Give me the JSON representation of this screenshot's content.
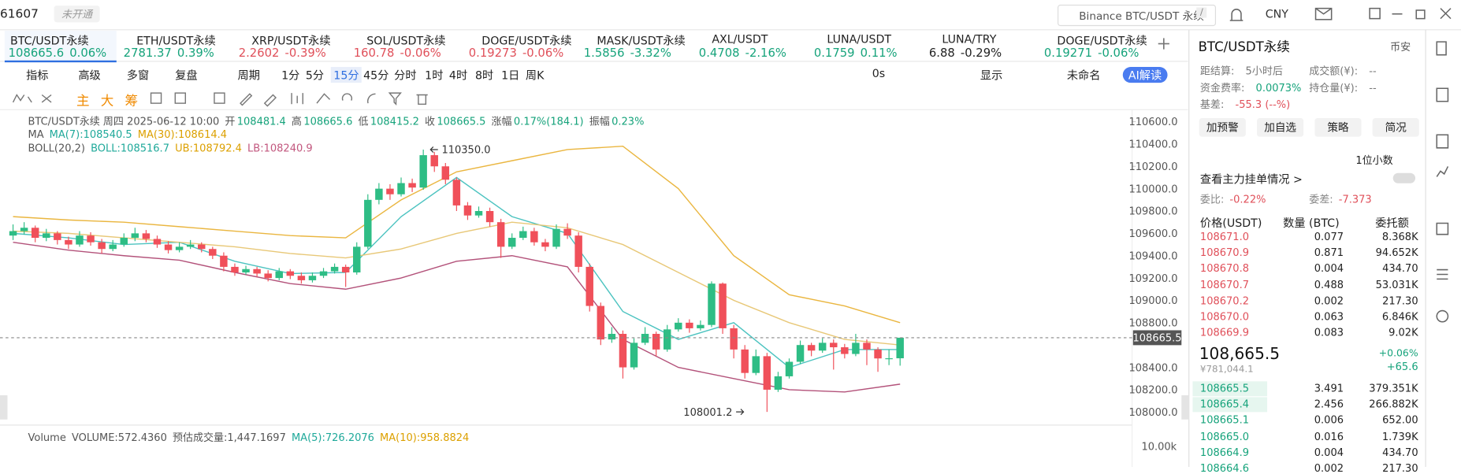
{
  "top_bar": {
    "code": "61607",
    "status": "未开通",
    "search": "Binance BTC/USDT 永续",
    "search_key": "/",
    "currency": "CNY"
  },
  "tickers": [
    {
      "name": "BTC/USDT永续",
      "price": "108665.6",
      "change": "0.06%",
      "color": "#16a37b"
    },
    {
      "name": "ETH/USDT永续",
      "price": "2781.37",
      "change": "0.39%",
      "color": "#16a37b"
    },
    {
      "name": "XRP/USDT永续",
      "price": "2.2602",
      "change": "-0.39%",
      "color": "#e0505a"
    },
    {
      "name": "SOL/USDT永续",
      "price": "160.78",
      "change": "-0.06%",
      "color": "#e0505a"
    },
    {
      "name": "DOGE/USDT永续",
      "price": "0.19273",
      "change": "-0.06%",
      "color": "#e0505a"
    },
    {
      "name": "MASK/USDT永续",
      "price": "1.5856",
      "change": "-3.32%",
      "color": "#16a37b"
    },
    {
      "name": "AXL/USDT",
      "price": "0.4708",
      "change": "-2.16%",
      "color": "#16a37b"
    },
    {
      "name": "LUNA/USDT",
      "price": "0.1759",
      "change": "0.11%",
      "color": "#16a37b"
    },
    {
      "name": "LUNA/TRY",
      "price": "6.88",
      "change": "-0.29%",
      "color": "#222222"
    },
    {
      "name": "DOGE/USDT永续",
      "price": "0.19271",
      "change": "-0.06%",
      "color": "#16a37b"
    }
  ],
  "toolbar": {
    "items": [
      "指标",
      "高级",
      "多窗",
      "复盘",
      "周期",
      "1分",
      "5分",
      "15分",
      "45分",
      "分时",
      "1时",
      "4时",
      "8时",
      "1日",
      "周K"
    ],
    "right": [
      "0s",
      "显示",
      "未命名",
      "AI解读"
    ]
  },
  "draw_tools": [
    "主",
    "大",
    "筹"
  ],
  "chart": {
    "info_title": "BTC/USDT永续 周四 2025-06-12 10:00",
    "info_fields": [
      {
        "label": "开",
        "value": "108481.4"
      },
      {
        "label": "高",
        "value": "108665.6"
      },
      {
        "label": "低",
        "value": "108415.2"
      },
      {
        "label": "收",
        "value": "108665.5"
      },
      {
        "label": "涨幅",
        "value": "0.17%(184.1)"
      },
      {
        "label": "振幅",
        "value": "0.23%"
      }
    ],
    "ma_title": "MA",
    "ma_legend": [
      {
        "text": "MA(7):108540.5",
        "color": "#1fa99a"
      },
      {
        "text": "MA(30):108614.4",
        "color": "#dca000"
      }
    ],
    "boll_title": "BOLL(20,2)",
    "boll_legend": [
      {
        "text": "BOLL:108516.7",
        "color": "#1fa99a"
      },
      {
        "text": "UB:108792.4",
        "color": "#dca000"
      },
      {
        "text": "LB:108240.9",
        "color": "#c2577e"
      }
    ],
    "ylim": [
      107900,
      110690
    ],
    "yticks": [
      {
        "value": 110600,
        "label": "110600.0"
      },
      {
        "value": 110400,
        "label": "110400.0"
      },
      {
        "value": 110200,
        "label": "110200.0"
      },
      {
        "value": 110000,
        "label": "110000.0"
      },
      {
        "value": 109800,
        "label": "109800.0"
      },
      {
        "value": 109600,
        "label": "109600.0"
      },
      {
        "value": 109400,
        "label": "109400.0"
      },
      {
        "value": 109200,
        "label": "109200.0"
      },
      {
        "value": 109000,
        "label": "109000.0"
      },
      {
        "value": 108800,
        "label": "108800.0"
      },
      {
        "value": 108400,
        "label": "108400.0"
      },
      {
        "value": 108200,
        "label": "108200.0"
      },
      {
        "value": 108000,
        "label": "108000.0"
      }
    ],
    "up_color": "#2ebd85",
    "down_color": "#f0505a",
    "candles": [
      [
        109580,
        109680,
        109540,
        109620
      ],
      [
        109620,
        109700,
        109590,
        109650
      ],
      [
        109650,
        109670,
        109520,
        109560
      ],
      [
        109560,
        109640,
        109530,
        109600
      ],
      [
        109600,
        109620,
        109500,
        109540
      ],
      [
        109540,
        109570,
        109460,
        109500
      ],
      [
        109500,
        109620,
        109480,
        109580
      ],
      [
        109580,
        109610,
        109490,
        109520
      ],
      [
        109520,
        109550,
        109420,
        109460
      ],
      [
        109460,
        109540,
        109440,
        109500
      ],
      [
        109500,
        109600,
        109480,
        109560
      ],
      [
        109560,
        109650,
        109530,
        109600
      ],
      [
        109600,
        109630,
        109520,
        109550
      ],
      [
        109550,
        109580,
        109470,
        109500
      ],
      [
        109500,
        109530,
        109420,
        109450
      ],
      [
        109450,
        109520,
        109430,
        109480
      ],
      [
        109480,
        109540,
        109460,
        109500
      ],
      [
        109500,
        109520,
        109430,
        109460
      ],
      [
        109460,
        109480,
        109370,
        109400
      ],
      [
        109400,
        109430,
        109260,
        109300
      ],
      [
        109300,
        109330,
        109220,
        109250
      ],
      [
        109250,
        109310,
        109230,
        109280
      ],
      [
        109280,
        109300,
        109210,
        109240
      ],
      [
        109240,
        109270,
        109170,
        109200
      ],
      [
        109200,
        109290,
        109180,
        109260
      ],
      [
        109260,
        109280,
        109190,
        109220
      ],
      [
        109220,
        109250,
        109150,
        109180
      ],
      [
        109180,
        109250,
        109160,
        109220
      ],
      [
        109220,
        109290,
        109200,
        109260
      ],
      [
        109260,
        109330,
        109240,
        109300
      ],
      [
        109300,
        109320,
        109120,
        109250
      ],
      [
        109250,
        109520,
        109230,
        109480
      ],
      [
        109480,
        109950,
        109460,
        109900
      ],
      [
        109900,
        110050,
        109860,
        110000
      ],
      [
        110000,
        110040,
        109900,
        109950
      ],
      [
        109950,
        110100,
        109930,
        110050
      ],
      [
        110050,
        110090,
        109970,
        110010
      ],
      [
        110010,
        110350,
        109990,
        110300
      ],
      [
        110300,
        110330,
        110150,
        110200
      ],
      [
        110200,
        110230,
        110040,
        110080
      ],
      [
        110080,
        110100,
        109800,
        109850
      ],
      [
        109850,
        109880,
        109720,
        109760
      ],
      [
        109760,
        109840,
        109740,
        109800
      ],
      [
        109800,
        109830,
        109660,
        109700
      ],
      [
        109700,
        109730,
        109380,
        109480
      ],
      [
        109480,
        109600,
        109460,
        109560
      ],
      [
        109560,
        109660,
        109540,
        109620
      ],
      [
        109620,
        109650,
        109490,
        109520
      ],
      [
        109520,
        109550,
        109440,
        109480
      ],
      [
        109480,
        109680,
        109460,
        109640
      ],
      [
        109640,
        109690,
        109550,
        109580
      ],
      [
        109580,
        109610,
        109250,
        109300
      ],
      [
        109300,
        109330,
        108900,
        108950
      ],
      [
        108950,
        108980,
        108600,
        108650
      ],
      [
        108650,
        108760,
        108620,
        108700
      ],
      [
        108700,
        108730,
        108300,
        108400
      ],
      [
        108400,
        108660,
        108380,
        108620
      ],
      [
        108620,
        108760,
        108600,
        108700
      ],
      [
        108700,
        108720,
        108500,
        108560
      ],
      [
        108560,
        108780,
        108540,
        108740
      ],
      [
        108740,
        108840,
        108720,
        108800
      ],
      [
        108800,
        108830,
        108710,
        108750
      ],
      [
        108750,
        108820,
        108730,
        108780
      ],
      [
        108780,
        109170,
        108760,
        109150
      ],
      [
        109150,
        109160,
        108700,
        108750
      ],
      [
        108750,
        108780,
        108480,
        108560
      ],
      [
        108560,
        108600,
        108300,
        108350
      ],
      [
        108350,
        108560,
        108330,
        108500
      ],
      [
        108500,
        108530,
        108001.2,
        108200
      ],
      [
        108200,
        108360,
        108180,
        108320
      ],
      [
        108320,
        108480,
        108300,
        108450
      ],
      [
        108450,
        108640,
        108430,
        108600
      ],
      [
        108600,
        108620,
        108500,
        108550
      ],
      [
        108550,
        108660,
        108530,
        108620
      ],
      [
        108620,
        108650,
        108380,
        108580
      ],
      [
        108580,
        108610,
        108480,
        108520
      ],
      [
        108520,
        108700,
        108500,
        108620
      ],
      [
        108620,
        108650,
        108420,
        108560
      ],
      [
        108560,
        108580,
        108360,
        108480
      ],
      [
        108480,
        108560,
        108420,
        108481.4
      ],
      [
        108481.4,
        108665.6,
        108415.2,
        108665.5
      ]
    ],
    "line_index": [
      0,
      5,
      10,
      15,
      20,
      25,
      30,
      35,
      40,
      45,
      50,
      55,
      60,
      65,
      70,
      75,
      80
    ],
    "lines": [
      {
        "color": "#eab640",
        "values": [
          109750,
          109720,
          109700,
          109660,
          109620,
          109580,
          109560,
          109900,
          110150,
          110250,
          110350,
          110380,
          110000,
          109400,
          109050,
          108950,
          108800
        ]
      },
      {
        "color": "#b3527a",
        "values": [
          109520,
          109450,
          109400,
          109360,
          109250,
          109150,
          109100,
          109200,
          109350,
          109400,
          109300,
          108650,
          108400,
          108300,
          108200,
          108180,
          108250
        ]
      },
      {
        "color": "#4cc3c0",
        "values": [
          109600,
          109560,
          109500,
          109520,
          109350,
          109240,
          109250,
          109750,
          110100,
          109750,
          109600,
          108900,
          108650,
          108800,
          108400,
          108560,
          108560
        ]
      },
      {
        "color": "#e8c878",
        "values": [
          109620,
          109600,
          109560,
          109520,
          109480,
          109420,
          109380,
          109460,
          109600,
          109700,
          109650,
          109500,
          109250,
          109000,
          108800,
          108650,
          108600
        ]
      }
    ],
    "annotations": [
      {
        "value": 110350,
        "label": "110350.0"
      },
      {
        "value": 108001.2,
        "label": "108001.2"
      }
    ],
    "last_price": 108665.5,
    "volume": {
      "title": "Volume",
      "fields": [
        "VOLUME:572.4360",
        "预估成交量:1,447.1697",
        "MA(5):726.2076",
        "MA(10):958.8824"
      ],
      "axis_label": "10.00k"
    }
  },
  "order_book": {
    "title": "BTC/USDT永续",
    "exchange": "币安",
    "stats": [
      {
        "label": "距结算:",
        "value": "5小时后"
      },
      {
        "label": "成交额(¥):",
        "value": "--"
      },
      {
        "label": "资金费率:",
        "value": "0.0073%"
      },
      {
        "label": "持仓量(¥):",
        "value": "--"
      },
      {
        "label": "基差:",
        "value": "-55.3 (--%)"
      }
    ],
    "buttons": [
      "加预警",
      "加自选",
      "策略",
      "简况"
    ],
    "precision": "1位小数",
    "main_orders": "查看主力挂单情况 >",
    "ratio": {
      "label": "委比:",
      "value": "-0.22%"
    },
    "diff": {
      "label": "委差:",
      "value": "-7.373"
    },
    "columns": [
      "价格(USDT)",
      "数量 (BTC)",
      "委托额"
    ],
    "asks": [
      [
        "108671.0",
        "0.077",
        "8.368K"
      ],
      [
        "108670.9",
        "0.871",
        "94.652K"
      ],
      [
        "108670.8",
        "0.004",
        "434.70"
      ],
      [
        "108670.7",
        "0.488",
        "53.031K"
      ],
      [
        "108670.2",
        "0.002",
        "217.30"
      ],
      [
        "108670.0",
        "0.063",
        "6.846K"
      ],
      [
        "108669.9",
        "0.083",
        "9.02K"
      ]
    ],
    "mid": {
      "price": "108,665.5",
      "cny": "¥781,044.1",
      "change_pct": "+0.06%",
      "change": "+65.6"
    },
    "bids": [
      [
        "108665.5",
        "3.491",
        "379.351K"
      ],
      [
        "108665.4",
        "2.456",
        "266.882K"
      ],
      [
        "108665.1",
        "0.006",
        "652.00"
      ],
      [
        "108665.0",
        "0.016",
        "1.739K"
      ],
      [
        "108664.9",
        "0.004",
        "434.70"
      ],
      [
        "108664.6",
        "0.002",
        "217.30"
      ]
    ]
  }
}
